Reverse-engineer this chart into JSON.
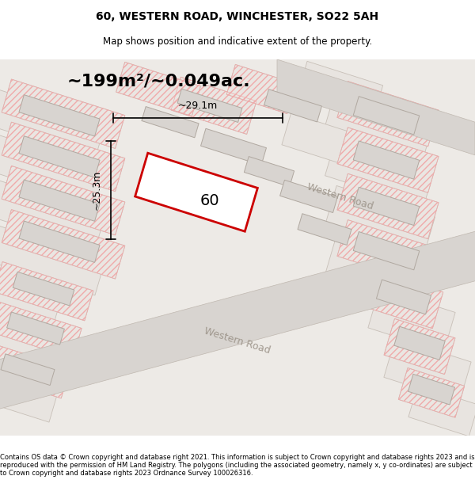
{
  "title": "60, WESTERN ROAD, WINCHESTER, SO22 5AH",
  "subtitle": "Map shows position and indicative extent of the property.",
  "area_text": "~199m²/~0.049ac.",
  "label_60": "60",
  "dim_width": "~29.1m",
  "dim_height": "~25.3m",
  "footer": "Contains OS data © Crown copyright and database right 2021. This information is subject to Crown copyright and database rights 2023 and is reproduced with the permission of HM Land Registry. The polygons (including the associated geometry, namely x, y co-ordinates) are subject to Crown copyright and database rights 2023 Ordnance Survey 100026316.",
  "bg_color": "#f0eeec",
  "road_label_1": "Western Road",
  "road_label_2": "Western Road",
  "map_bg": "#e8e6e4",
  "plot_color": "#cc0000",
  "plot_fill": "#ffffff",
  "building_color": "#d0ccc8",
  "road_line_color": "#c8c0b8",
  "hatching_color": "#e8a0a0"
}
